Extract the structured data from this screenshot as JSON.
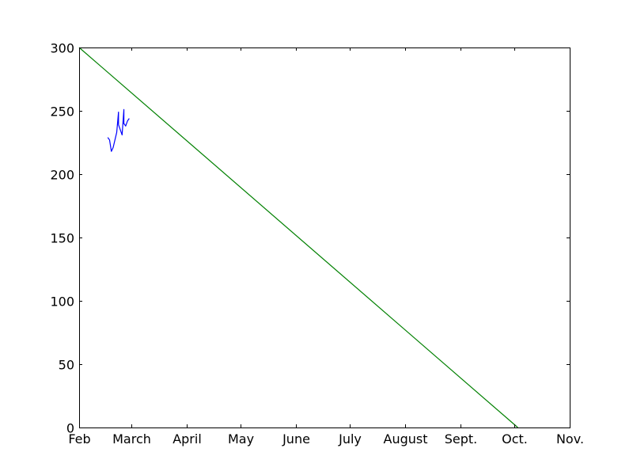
{
  "chart_data": {
    "type": "line",
    "title": "",
    "xlabel": "",
    "ylabel": "",
    "x_scale": "date",
    "xlim": [
      "2016-02-01",
      "2016-11-01"
    ],
    "ylim": [
      0,
      300
    ],
    "grid": false,
    "legend": "none",
    "x_ticks": [
      {
        "date": "2016-02-01",
        "label": "Feb"
      },
      {
        "date": "2016-03-01",
        "label": "March"
      },
      {
        "date": "2016-04-01",
        "label": "April"
      },
      {
        "date": "2016-05-01",
        "label": "May"
      },
      {
        "date": "2016-06-01",
        "label": "June"
      },
      {
        "date": "2016-07-01",
        "label": "July"
      },
      {
        "date": "2016-08-01",
        "label": "August"
      },
      {
        "date": "2016-09-01",
        "label": "Sept."
      },
      {
        "date": "2016-10-01",
        "label": "Oct."
      },
      {
        "date": "2016-11-01",
        "label": "Nov."
      }
    ],
    "y_ticks": [
      0,
      50,
      100,
      150,
      200,
      250,
      300
    ],
    "series": [
      {
        "color": "#0000ff",
        "points": [
          {
            "x": "2016-02-17",
            "y": 229
          },
          {
            "x": "2016-02-18",
            "y": 227
          },
          {
            "x": "2016-02-19",
            "y": 218
          },
          {
            "x": "2016-02-20",
            "y": 221
          },
          {
            "x": "2016-02-22",
            "y": 233
          },
          {
            "x": "2016-02-23",
            "y": 249
          },
          {
            "x": "2016-02-23",
            "y": 239
          },
          {
            "x": "2016-02-25",
            "y": 231
          },
          {
            "x": "2016-02-26",
            "y": 251
          },
          {
            "x": "2016-02-26",
            "y": 240
          },
          {
            "x": "2016-02-27",
            "y": 238
          },
          {
            "x": "2016-02-28",
            "y": 242
          },
          {
            "x": "2016-02-29",
            "y": 244
          }
        ]
      },
      {
        "color": "#008000",
        "points": [
          {
            "x": "2016-02-01",
            "y": 300
          },
          {
            "x": "2016-10-03",
            "y": 0
          }
        ]
      }
    ]
  }
}
